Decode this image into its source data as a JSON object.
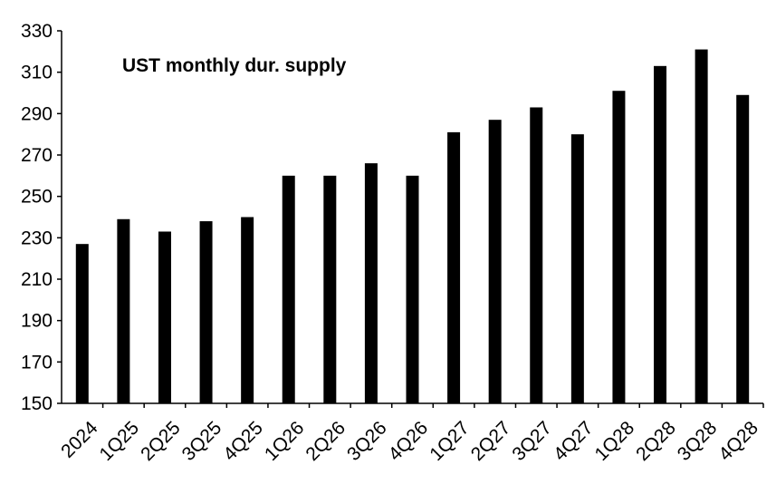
{
  "chart_data": {
    "type": "bar",
    "title": "",
    "xlabel": "",
    "ylabel": "",
    "series": [
      {
        "name": "UST monthly dur. supply",
        "values": [
          227,
          239,
          233,
          238,
          240,
          260,
          260,
          266,
          260,
          281,
          287,
          293,
          280,
          301,
          313,
          321,
          299
        ]
      }
    ],
    "categories": [
      "2024",
      "1Q25",
      "2Q25",
      "3Q25",
      "4Q25",
      "1Q26",
      "2Q26",
      "3Q26",
      "4Q26",
      "1Q27",
      "2Q27",
      "3Q27",
      "4Q27",
      "1Q28",
      "2Q28",
      "3Q28",
      "4Q28"
    ],
    "ylim": [
      150,
      330
    ],
    "yticks": [
      150,
      170,
      190,
      210,
      230,
      250,
      270,
      290,
      310,
      330
    ],
    "grid": false,
    "legend": "top-left inside plot",
    "colors": {
      "bar": "#000000",
      "axis": "#000000"
    }
  }
}
